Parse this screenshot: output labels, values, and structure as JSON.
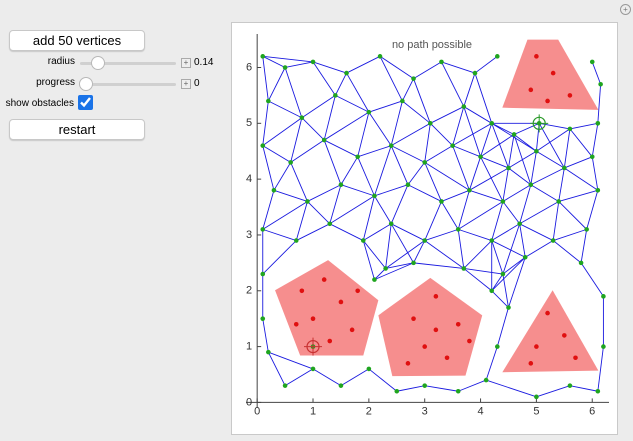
{
  "controls": {
    "add_button": "add 50 vertices",
    "radius_label": "radius",
    "radius_value": "0.14",
    "progress_label": "progress",
    "progress_value": "0",
    "obstacles_label": "show obstacles",
    "obstacles_checked": true,
    "restart_button": "restart"
  },
  "plot": {
    "annotation": "no path possible",
    "xlim": [
      -0.2,
      6.3
    ],
    "ylim": [
      -0.1,
      6.6
    ],
    "xticks": [
      0,
      1,
      2,
      3,
      4,
      5,
      6
    ],
    "yticks": [
      0,
      1,
      2,
      3,
      4,
      5,
      6
    ],
    "start": [
      1,
      1
    ],
    "goal": [
      5.05,
      5.0
    ],
    "obstacles": [
      [
        [
          0.32,
          2.01
        ],
        [
          1.27,
          2.55
        ],
        [
          2.17,
          1.83
        ],
        [
          1.9,
          0.84
        ],
        [
          0.77,
          0.84
        ]
      ],
      [
        [
          2.17,
          1.56
        ],
        [
          3.1,
          2.23
        ],
        [
          4.03,
          1.56
        ],
        [
          3.73,
          0.48
        ],
        [
          2.42,
          0.47
        ]
      ],
      [
        [
          5.29,
          2.01
        ],
        [
          6.11,
          0.57
        ],
        [
          4.39,
          0.54
        ]
      ],
      [
        [
          4.84,
          6.5
        ],
        [
          5.39,
          6.5
        ],
        [
          6.11,
          5.24
        ],
        [
          4.39,
          5.28
        ]
      ]
    ],
    "free": [
      [
        0.1,
        6.2
      ],
      [
        0.5,
        6.0
      ],
      [
        1.0,
        6.1
      ],
      [
        1.6,
        5.9
      ],
      [
        2.2,
        6.2
      ],
      [
        2.8,
        5.8
      ],
      [
        3.3,
        6.1
      ],
      [
        3.9,
        5.9
      ],
      [
        4.3,
        6.2
      ],
      [
        0.2,
        5.4
      ],
      [
        0.8,
        5.1
      ],
      [
        1.4,
        5.5
      ],
      [
        2.0,
        5.2
      ],
      [
        2.6,
        5.4
      ],
      [
        3.1,
        5.0
      ],
      [
        3.7,
        5.3
      ],
      [
        4.2,
        5.0
      ],
      [
        4.6,
        4.8
      ],
      [
        5.05,
        5.0
      ],
      [
        5.6,
        4.9
      ],
      [
        6.1,
        5.0
      ],
      [
        0.1,
        4.6
      ],
      [
        0.6,
        4.3
      ],
      [
        1.2,
        4.7
      ],
      [
        1.8,
        4.4
      ],
      [
        2.4,
        4.6
      ],
      [
        3.0,
        4.3
      ],
      [
        3.5,
        4.6
      ],
      [
        4.0,
        4.4
      ],
      [
        4.5,
        4.2
      ],
      [
        5.0,
        4.5
      ],
      [
        5.5,
        4.2
      ],
      [
        6.0,
        4.4
      ],
      [
        0.3,
        3.8
      ],
      [
        0.9,
        3.6
      ],
      [
        1.5,
        3.9
      ],
      [
        2.1,
        3.7
      ],
      [
        2.7,
        3.9
      ],
      [
        3.3,
        3.6
      ],
      [
        3.8,
        3.8
      ],
      [
        4.4,
        3.6
      ],
      [
        4.9,
        3.9
      ],
      [
        5.4,
        3.6
      ],
      [
        6.1,
        3.8
      ],
      [
        0.1,
        3.1
      ],
      [
        0.7,
        2.9
      ],
      [
        1.3,
        3.2
      ],
      [
        1.9,
        2.9
      ],
      [
        2.4,
        3.2
      ],
      [
        3.0,
        2.9
      ],
      [
        3.6,
        3.1
      ],
      [
        4.2,
        2.9
      ],
      [
        4.7,
        3.2
      ],
      [
        5.3,
        2.9
      ],
      [
        5.9,
        3.1
      ],
      [
        0.1,
        2.3
      ],
      [
        2.3,
        2.4
      ],
      [
        2.8,
        2.5
      ],
      [
        3.7,
        2.4
      ],
      [
        4.4,
        2.3
      ],
      [
        4.8,
        2.6
      ],
      [
        5.8,
        2.5
      ],
      [
        6.2,
        1.9
      ],
      [
        0.1,
        1.5
      ],
      [
        0.2,
        0.9
      ],
      [
        0.5,
        0.3
      ],
      [
        1.0,
        0.6
      ],
      [
        1.5,
        0.3
      ],
      [
        2.0,
        0.6
      ],
      [
        2.5,
        0.2
      ],
      [
        3.0,
        0.3
      ],
      [
        3.6,
        0.2
      ],
      [
        4.1,
        0.4
      ],
      [
        4.3,
        1.0
      ],
      [
        4.5,
        1.7
      ],
      [
        4.2,
        2.0
      ],
      [
        5.0,
        0.1
      ],
      [
        5.6,
        0.3
      ],
      [
        6.1,
        0.2
      ],
      [
        6.2,
        1.0
      ],
      [
        1.0,
        1.0
      ],
      [
        2.1,
        2.2
      ],
      [
        6.15,
        5.7
      ],
      [
        6.0,
        6.1
      ]
    ],
    "blocked": [
      [
        0.8,
        2.0
      ],
      [
        1.2,
        2.2
      ],
      [
        1.5,
        1.8
      ],
      [
        1.0,
        1.5
      ],
      [
        1.7,
        1.3
      ],
      [
        1.3,
        1.1
      ],
      [
        0.7,
        1.4
      ],
      [
        1.8,
        2.0
      ],
      [
        2.8,
        1.5
      ],
      [
        3.2,
        1.9
      ],
      [
        3.6,
        1.4
      ],
      [
        3.0,
        1.0
      ],
      [
        3.4,
        0.8
      ],
      [
        2.7,
        0.7
      ],
      [
        3.8,
        1.1
      ],
      [
        3.2,
        1.3
      ],
      [
        5.2,
        1.6
      ],
      [
        5.0,
        1.0
      ],
      [
        5.5,
        1.2
      ],
      [
        5.7,
        0.8
      ],
      [
        4.9,
        0.7
      ],
      [
        5.0,
        6.2
      ],
      [
        5.3,
        5.9
      ],
      [
        4.9,
        5.6
      ],
      [
        5.6,
        5.5
      ],
      [
        5.2,
        5.4
      ]
    ]
  }
}
